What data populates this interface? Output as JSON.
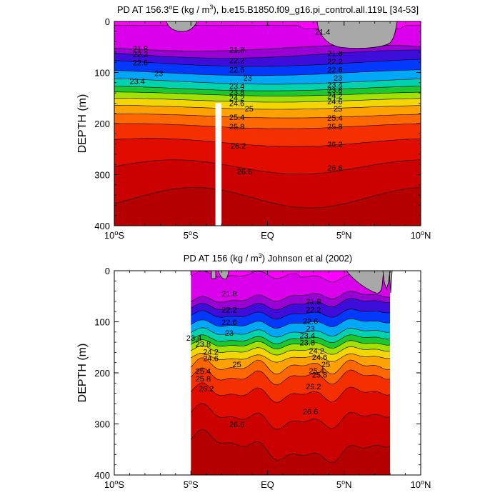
{
  "chart_data": [
    {
      "type": "heatmap",
      "panel": "top",
      "title": "PD AT 156.3°E (kg / m³), b.e15.B1850.f09_g16.pi_control.all.119L [34-53]",
      "title_parts": {
        "pre": "PD AT 156.3",
        "sup_deg": "o",
        "post1": "E (kg / m",
        "sup_3": "3",
        "post2": "), b.e15.B1850.f09_g16.pi_control.all.119L [34-53]"
      },
      "ylabel": "DEPTH (m)",
      "x_range": [
        -10,
        10
      ],
      "y_range": [
        0,
        400
      ],
      "y_inverted": true,
      "data_x_range": [
        -10,
        10
      ],
      "land_mask_x_range": [
        -3.4,
        -3.0
      ],
      "x_ticks": [
        {
          "value": -10,
          "num": "10",
          "deg": "o",
          "hem": "S"
        },
        {
          "value": -5,
          "num": "5",
          "deg": "o",
          "hem": "S"
        },
        {
          "value": 0,
          "num": "EQ",
          "deg": "",
          "hem": ""
        },
        {
          "value": 5,
          "num": "5",
          "deg": "o",
          "hem": "N"
        },
        {
          "value": 10,
          "num": "10",
          "deg": "o",
          "hem": "N"
        }
      ],
      "y_ticks": [
        "0",
        "100",
        "200",
        "300",
        "400"
      ],
      "contour_levels": [
        21.4,
        21.6,
        21.8,
        22,
        22.2,
        22.4,
        22.6,
        22.8,
        23,
        23.2,
        23.4,
        23.6,
        23.8,
        24,
        24.2,
        24.4,
        24.6,
        24.8,
        25,
        25.2,
        25.4,
        25.6,
        25.8,
        26,
        26.2,
        26.4,
        26.6,
        26.8
      ],
      "contour_labels": [
        {
          "text": "21.4",
          "x": 3.6,
          "y": 22
        },
        {
          "text": "21.8",
          "x": -8.3,
          "y": 55
        },
        {
          "text": "22.2",
          "x": -8.3,
          "y": 66
        },
        {
          "text": "22.6",
          "x": -8.3,
          "y": 82
        },
        {
          "text": "23",
          "x": -7.1,
          "y": 103
        },
        {
          "text": "23.4",
          "x": -8.5,
          "y": 118
        },
        {
          "text": "21.8",
          "x": -2.0,
          "y": 57
        },
        {
          "text": "22.2",
          "x": -2.0,
          "y": 78
        },
        {
          "text": "22.6",
          "x": -2.0,
          "y": 96
        },
        {
          "text": "23",
          "x": -1.3,
          "y": 112
        },
        {
          "text": "23.4",
          "x": -2.0,
          "y": 128
        },
        {
          "text": "23.8",
          "x": -2.0,
          "y": 140
        },
        {
          "text": "24.2",
          "x": -2.0,
          "y": 151
        },
        {
          "text": "24.6",
          "x": -2.0,
          "y": 162
        },
        {
          "text": "25",
          "x": -1.2,
          "y": 172
        },
        {
          "text": "25.4",
          "x": -2.0,
          "y": 189
        },
        {
          "text": "25.8",
          "x": -2.0,
          "y": 207
        },
        {
          "text": "26.2",
          "x": -1.9,
          "y": 245
        },
        {
          "text": "26.6",
          "x": -1.5,
          "y": 295
        },
        {
          "text": "21.8",
          "x": 4.4,
          "y": 64
        },
        {
          "text": "22.2",
          "x": 4.4,
          "y": 80
        },
        {
          "text": "22.6",
          "x": 4.4,
          "y": 96
        },
        {
          "text": "23",
          "x": 4.6,
          "y": 112
        },
        {
          "text": "23.4",
          "x": 4.4,
          "y": 125
        },
        {
          "text": "23.8",
          "x": 4.4,
          "y": 136
        },
        {
          "text": "24.2",
          "x": 4.4,
          "y": 147
        },
        {
          "text": "24.6",
          "x": 4.4,
          "y": 158
        },
        {
          "text": "25",
          "x": 4.6,
          "y": 172
        },
        {
          "text": "25.4",
          "x": 4.4,
          "y": 190
        },
        {
          "text": "25.8",
          "x": 4.4,
          "y": 207
        },
        {
          "text": "26.2",
          "x": 4.4,
          "y": 242
        },
        {
          "text": "26.6",
          "x": 4.4,
          "y": 288
        }
      ]
    },
    {
      "type": "heatmap",
      "panel": "bottom",
      "title": "PD AT 156 (kg / m³) Johnson et al (2002)",
      "title_parts": {
        "pre": "PD AT 156 (kg / m",
        "sup_3": "3",
        "post": ") Johnson et al (2002)"
      },
      "ylabel": "DEPTH (m)",
      "x_range": [
        -10,
        10
      ],
      "y_range": [
        0,
        400
      ],
      "y_inverted": true,
      "data_x_range": [
        -5,
        8
      ],
      "x_ticks": [
        {
          "value": -10,
          "num": "10",
          "deg": "o",
          "hem": "S"
        },
        {
          "value": -5,
          "num": "5",
          "deg": "o",
          "hem": "S"
        },
        {
          "value": 0,
          "num": "EQ",
          "deg": "",
          "hem": ""
        },
        {
          "value": 5,
          "num": "5",
          "deg": "o",
          "hem": "N"
        },
        {
          "value": 10,
          "num": "10",
          "deg": "o",
          "hem": "N"
        }
      ],
      "y_ticks": [
        "0",
        "100",
        "200",
        "300",
        "400"
      ],
      "contour_levels": [
        21.4,
        21.6,
        21.8,
        22,
        22.2,
        22.4,
        22.6,
        22.8,
        23,
        23.2,
        23.4,
        23.6,
        23.8,
        24,
        24.2,
        24.4,
        24.6,
        24.8,
        25,
        25.2,
        25.4,
        25.6,
        25.8,
        26,
        26.2,
        26.4,
        26.6,
        26.8
      ],
      "contour_labels": [
        {
          "text": "21.8",
          "x": -2.5,
          "y": 46
        },
        {
          "text": "22.2",
          "x": -2.5,
          "y": 78
        },
        {
          "text": "22.6",
          "x": -2.5,
          "y": 102
        },
        {
          "text": "23",
          "x": -2.5,
          "y": 123
        },
        {
          "text": "23.4",
          "x": -4.8,
          "y": 133
        },
        {
          "text": "23.8",
          "x": -4.2,
          "y": 145
        },
        {
          "text": "24.2",
          "x": -3.7,
          "y": 160
        },
        {
          "text": "24.6",
          "x": -3.7,
          "y": 173
        },
        {
          "text": "25",
          "x": -2.0,
          "y": 185
        },
        {
          "text": "25.4",
          "x": -4.2,
          "y": 198
        },
        {
          "text": "25.8",
          "x": -4.2,
          "y": 213
        },
        {
          "text": "26.2",
          "x": -4.0,
          "y": 232
        },
        {
          "text": "26.6",
          "x": -2.0,
          "y": 302
        },
        {
          "text": "21.8",
          "x": 3.0,
          "y": 62
        },
        {
          "text": "22.2",
          "x": 3.0,
          "y": 78
        },
        {
          "text": "22.6",
          "x": 2.8,
          "y": 100
        },
        {
          "text": "23",
          "x": 2.8,
          "y": 115
        },
        {
          "text": "23.4",
          "x": 2.6,
          "y": 128
        },
        {
          "text": "23.8",
          "x": 2.6,
          "y": 142
        },
        {
          "text": "24.2",
          "x": 3.2,
          "y": 158
        },
        {
          "text": "24.6",
          "x": 3.4,
          "y": 171
        },
        {
          "text": "25",
          "x": 3.8,
          "y": 185
        },
        {
          "text": "25.4",
          "x": 3.2,
          "y": 197
        },
        {
          "text": "25.8",
          "x": 3.4,
          "y": 205
        },
        {
          "text": "26.2",
          "x": 3.0,
          "y": 228
        },
        {
          "text": "26.6",
          "x": 2.8,
          "y": 277
        }
      ]
    }
  ]
}
